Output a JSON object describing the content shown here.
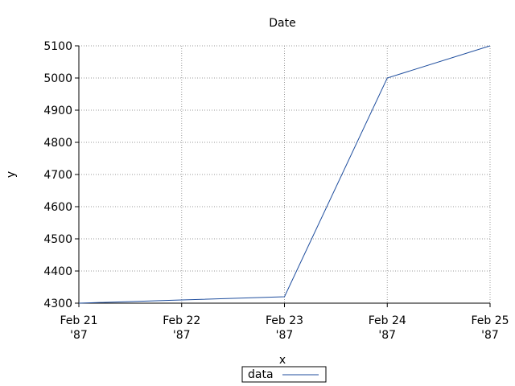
{
  "chart_data": {
    "type": "line",
    "title": "Date",
    "xlabel": "x",
    "ylabel": "y",
    "x": [
      "1987-02-21",
      "1987-02-22",
      "1987-02-23",
      "1987-02-24",
      "1987-02-25"
    ],
    "series": [
      {
        "name": "data",
        "values": [
          4300,
          4310,
          4320,
          5000,
          5100
        ],
        "color": "#1f4e9e"
      }
    ],
    "x_ticks": [
      {
        "date": "1987-02-21",
        "line1": "Feb 21",
        "line2": "'87"
      },
      {
        "date": "1987-02-22",
        "line1": "Feb 22",
        "line2": "'87"
      },
      {
        "date": "1987-02-23",
        "line1": "Feb 23",
        "line2": "'87"
      },
      {
        "date": "1987-02-24",
        "line1": "Feb 24",
        "line2": "'87"
      },
      {
        "date": "1987-02-25",
        "line1": "Feb 25",
        "line2": "'87"
      }
    ],
    "y_ticks": [
      4300,
      4400,
      4500,
      4600,
      4700,
      4800,
      4900,
      5000,
      5100
    ],
    "xlim": [
      "1987-02-21",
      "1987-02-25"
    ],
    "ylim": [
      4300,
      5100
    ],
    "grid": true,
    "legend_position": "bottom-center"
  }
}
